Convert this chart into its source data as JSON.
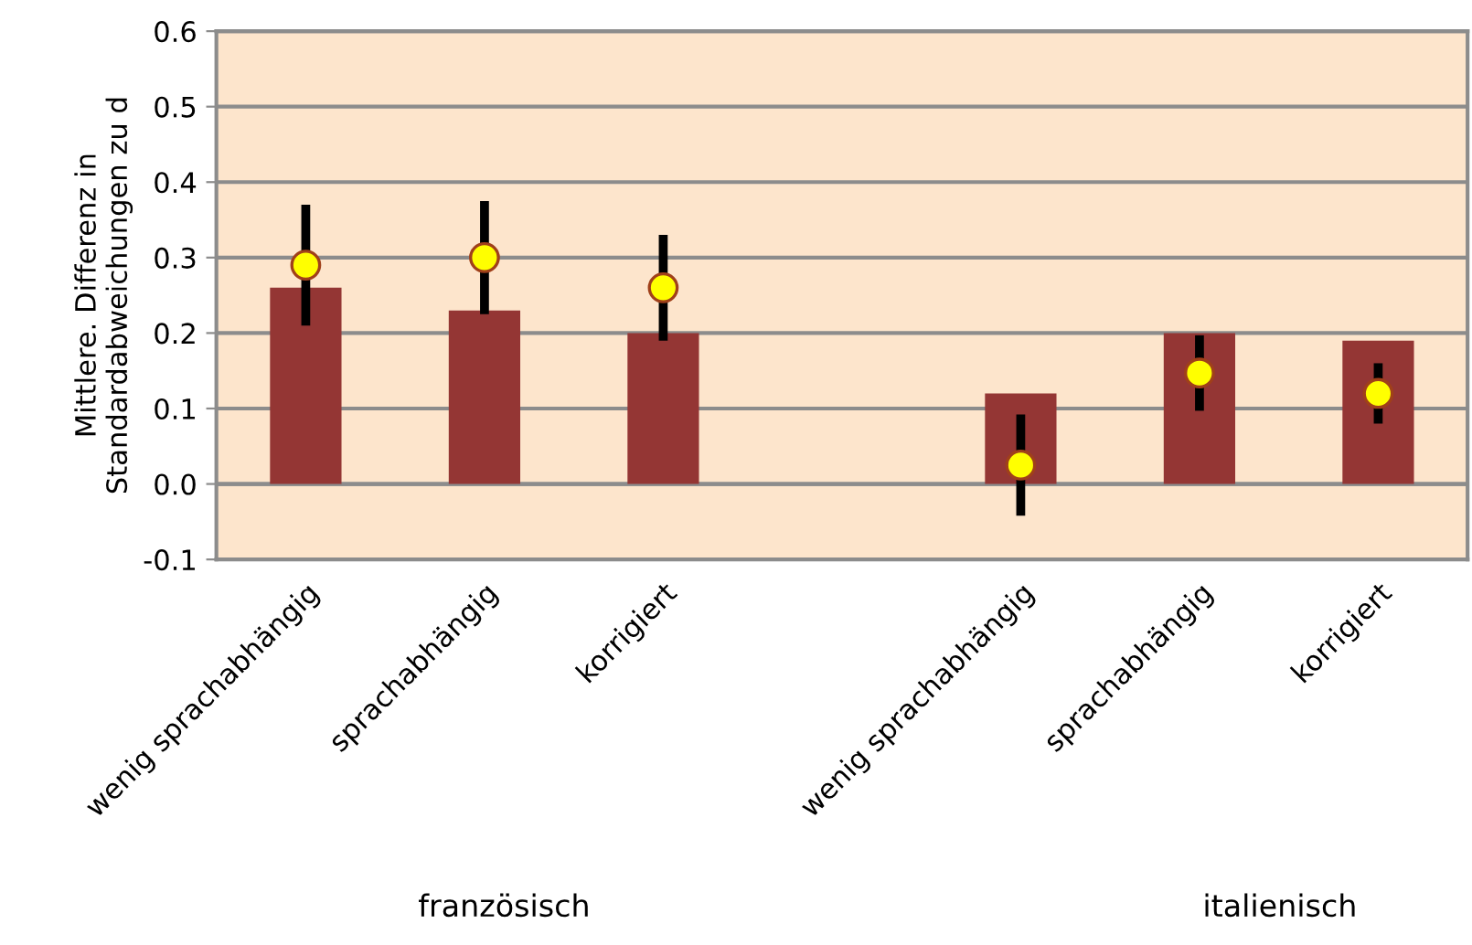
{
  "chart_data": {
    "type": "bar",
    "ylabel": "Mittlere. Differenz in Standardabweichungen zu d",
    "categories": [
      "wenig sprachabhängig",
      "sprachabhängig",
      "korrigiert",
      null,
      "wenig sprachabhängig",
      "sprachabhängig",
      "korrigiert"
    ],
    "series": [
      {
        "color": "#943634",
        "values": [
          0.26,
          0.23,
          0.2,
          null,
          0.12,
          0.2,
          0.19
        ]
      },
      {
        "type": "scatter",
        "color": "#ffff00",
        "values": [
          0.29,
          0.3,
          0.26,
          null,
          0.025,
          0.147,
          0.12
        ],
        "errors": [
          0.08,
          0.075,
          0.07,
          null,
          0.067,
          0.05,
          0.04
        ]
      }
    ],
    "ylim": [
      -0.1,
      0.6
    ],
    "yticks": [
      -0.1,
      {
        "value": 0,
        "label": "0.0"
      },
      0.1,
      0.2,
      0.3,
      0.4,
      0.5,
      0.6
    ],
    "grid": "y",
    "marker": "circle",
    "legend": false,
    "annotations": [
      "französisch",
      "italienisch"
    ]
  }
}
